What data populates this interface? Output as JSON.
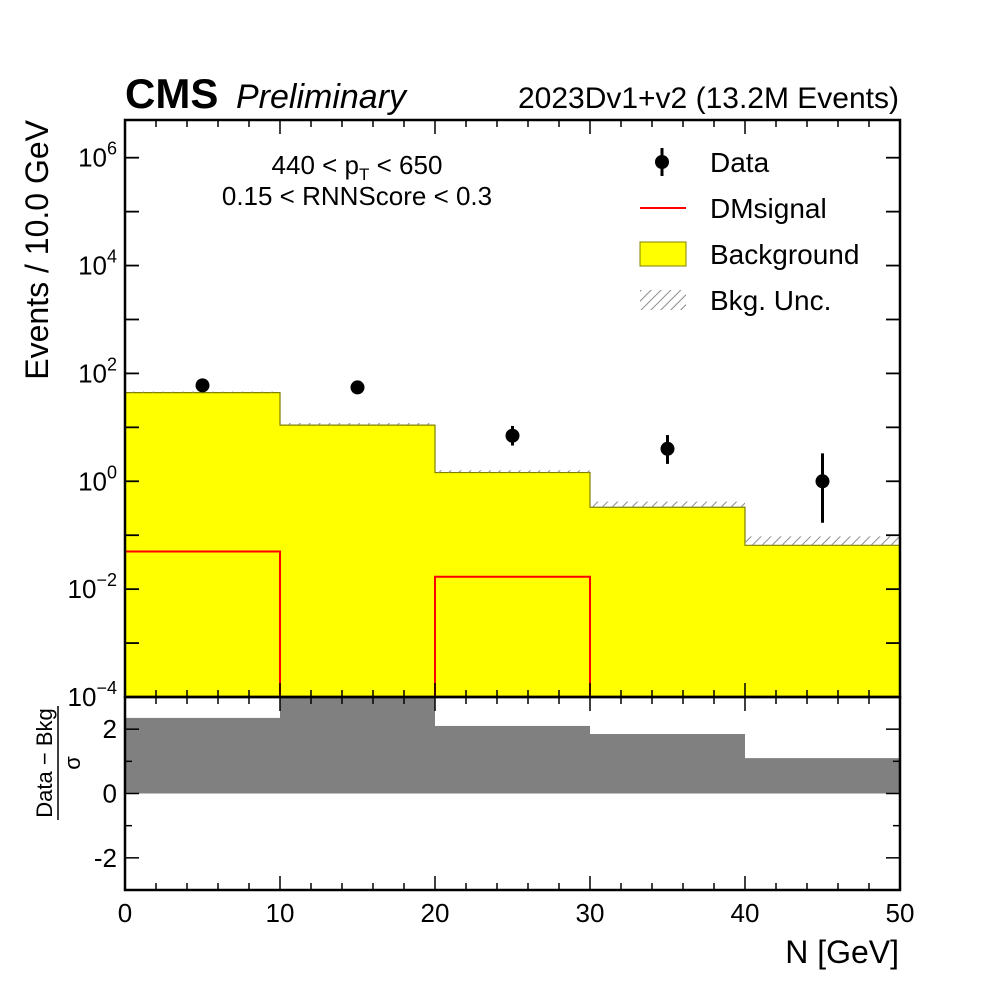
{
  "header": {
    "experiment": "CMS",
    "status": "Preliminary",
    "dataset": "2023Dv1+v2 (13.2M Events)"
  },
  "selection": {
    "pt_prefix": "440 < p",
    "pt_sub": "T",
    "pt_suffix": " < 650",
    "rnn_text": "0.15 < RNNScore < 0.3"
  },
  "colors": {
    "background_fill": "#ffff00",
    "background_edge": "#808000",
    "signal": "#ff0000",
    "data": "#000000",
    "uncertainty_hatch": "#8c8c8c",
    "pull_fill": "#808080"
  },
  "chart_data": [
    {
      "type": "histogram",
      "panel": "main",
      "yscale": "log",
      "ylabel": "Events / 10.0 GeV",
      "xlim": [
        0,
        50
      ],
      "ylim": [
        0.0001,
        5000000
      ],
      "bin_edges": [
        0,
        10,
        20,
        30,
        40,
        50
      ],
      "ytick_labels": [
        {
          "value": 0.0001,
          "base": "10",
          "exp": "−4"
        },
        {
          "value": 0.01,
          "base": "10",
          "exp": "−2"
        },
        {
          "value": 1,
          "base": "10",
          "exp": "0"
        },
        {
          "value": 100,
          "base": "10",
          "exp": "2"
        },
        {
          "value": 10000,
          "base": "10",
          "exp": "4"
        },
        {
          "value": 1000000,
          "base": "10",
          "exp": "6"
        }
      ],
      "series": [
        {
          "name": "Data",
          "kind": "points",
          "x": [
            5,
            15,
            25,
            35,
            45
          ],
          "values": [
            60,
            55,
            7,
            4,
            1
          ],
          "err_low": [
            8,
            7.5,
            2.4,
            1.9,
            0.83
          ],
          "err_high": [
            8,
            7.5,
            3.6,
            3.2,
            2.3
          ]
        },
        {
          "name": "DMsignal",
          "kind": "step",
          "values": [
            0.05,
            0,
            0.017,
            0,
            0
          ]
        },
        {
          "name": "Background",
          "kind": "filled",
          "values": [
            44,
            11,
            1.45,
            0.33,
            0.065
          ]
        },
        {
          "name": "Bkg. Unc.",
          "kind": "hatched band",
          "low": [
            44,
            11,
            1.45,
            0.33,
            0.065
          ],
          "high": [
            46,
            12,
            1.6,
            0.42,
            0.095
          ]
        }
      ]
    },
    {
      "type": "bar",
      "panel": "ratio",
      "ylabel_num": "Data − Bkg",
      "ylabel_den": "σ",
      "xlabel": "N [GeV]",
      "xlim": [
        0,
        50
      ],
      "ylim": [
        -3,
        3
      ],
      "bin_edges": [
        0,
        10,
        20,
        30,
        40,
        50
      ],
      "values": [
        2.35,
        3.0,
        2.1,
        1.85,
        1.1
      ],
      "xtick_labels": [
        "0",
        "10",
        "20",
        "30",
        "40",
        "50"
      ],
      "ytick_labels": [
        "-2",
        "0",
        "2"
      ]
    }
  ],
  "legend": {
    "placement": "top-right",
    "items": [
      {
        "label": "Data",
        "symbol": "marker"
      },
      {
        "label": "DMsignal",
        "symbol": "line"
      },
      {
        "label": "Background",
        "symbol": "box"
      },
      {
        "label": "Bkg. Unc.",
        "symbol": "hatch"
      }
    ]
  }
}
